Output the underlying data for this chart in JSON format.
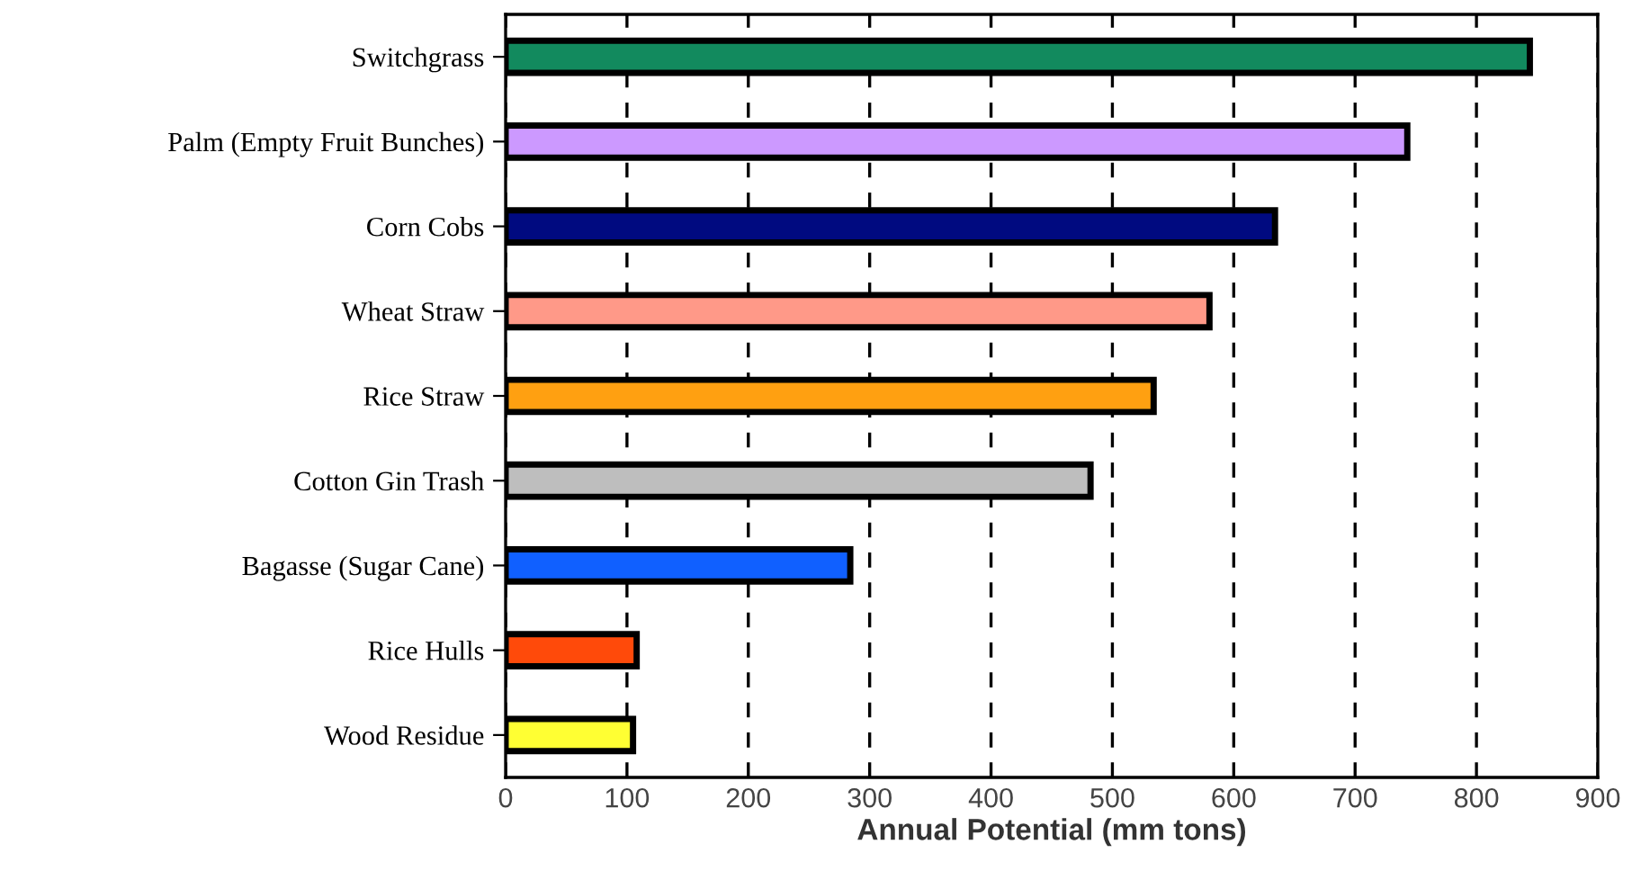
{
  "chart_data": {
    "type": "bar",
    "orientation": "horizontal",
    "xlabel": "Annual Potential (mm tons)",
    "categories": [
      "Switchgrass",
      "Palm (Empty Fruit Bunches)",
      "Corn Cobs",
      "Wheat Straw",
      "Rice Straw",
      "Cotton Gin Trash",
      "Bagasse (Sugar Cane)",
      "Rice Hulls",
      "Wood Residue"
    ],
    "values": [
      844,
      743,
      634,
      580,
      534,
      482,
      284,
      108,
      105
    ],
    "colors": [
      "#128a5e",
      "#cc99ff",
      "#000a80",
      "#ff9988",
      "#ffa011",
      "#bebebe",
      "#1060ff",
      "#ff4a0a",
      "#ffff33"
    ],
    "xlim": [
      0,
      900
    ],
    "xticks": [
      0,
      100,
      200,
      300,
      400,
      500,
      600,
      700,
      800,
      900
    ],
    "grid": "x",
    "line_style": "dashed"
  }
}
